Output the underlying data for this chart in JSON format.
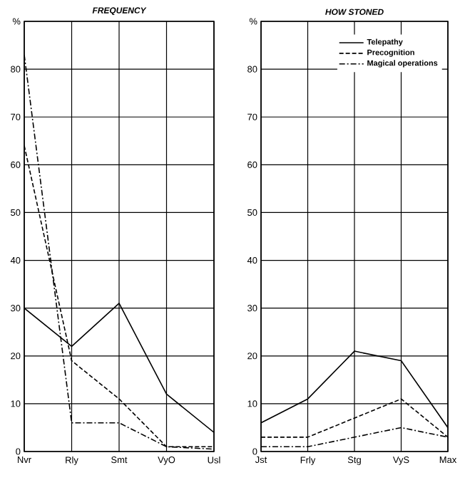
{
  "chart_data": [
    {
      "type": "line",
      "title": "FREQUENCY",
      "categories": [
        "Nvr",
        "Rly",
        "Smt",
        "VyO",
        "Usl"
      ],
      "ylim": [
        0,
        90
      ],
      "yticks": [
        0,
        10,
        20,
        30,
        40,
        50,
        60,
        70,
        80,
        {
          "value": 90,
          "label": "%"
        }
      ],
      "grid": true,
      "legend": false,
      "series": [
        {
          "color": "#000000",
          "line_style": "solid",
          "values": [
            30,
            22,
            31,
            12,
            4
          ]
        },
        {
          "color": "#000000",
          "line_style": "dashed",
          "values": [
            64,
            19,
            11,
            1,
            1
          ]
        },
        {
          "color": "#000000",
          "line_style": "dashdot",
          "values": [
            83,
            6,
            6,
            1,
            0.5
          ]
        }
      ]
    },
    {
      "type": "line",
      "title": "HOW STONED",
      "categories": [
        "Jst",
        "Frly",
        "Stg",
        "VyS",
        "Max"
      ],
      "ylim": [
        0,
        90
      ],
      "yticks": [
        0,
        10,
        20,
        30,
        40,
        50,
        60,
        70,
        80,
        {
          "value": 90,
          "label": "%"
        }
      ],
      "grid": true,
      "legend": "top right",
      "series": [
        {
          "name": "Telepathy",
          "color": "#000000",
          "line_style": "solid",
          "values": [
            6,
            11,
            21,
            19,
            5
          ]
        },
        {
          "name": "Precognition",
          "color": "#000000",
          "line_style": "dashed",
          "values": [
            3,
            3,
            7,
            11,
            3
          ]
        },
        {
          "name": "Magical operations",
          "color": "#000000",
          "line_style": "dashdot",
          "values": [
            1,
            1,
            3,
            5,
            3
          ]
        }
      ]
    }
  ]
}
